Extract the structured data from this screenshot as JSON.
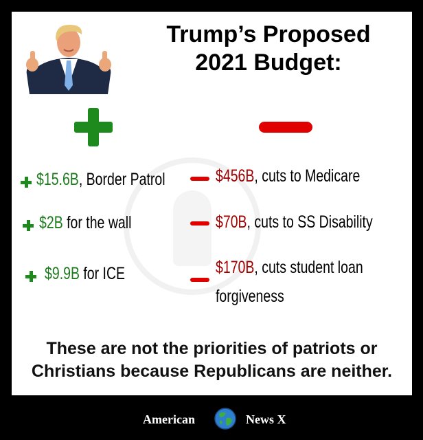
{
  "title": {
    "line1": "Trump’s Proposed",
    "line2": "2021 Budget:"
  },
  "columns": {
    "plus_color": "#1e8a1e",
    "minus_color": "#e00000"
  },
  "increases": [
    {
      "amount": "$15.6B",
      "desc": ", Border Patrol"
    },
    {
      "amount": "$2B",
      "desc": " for the wall"
    },
    {
      "amount": "$9.9B",
      "desc": " for ICE"
    }
  ],
  "cuts": [
    {
      "amount": "$456B",
      "desc": ", cuts to Medicare",
      "desc2": ""
    },
    {
      "amount": "$70B",
      "desc": ", cuts to SS Disability",
      "desc2": ""
    },
    {
      "amount": "$170B",
      "desc": ", cuts student loan",
      "desc2": "forgiveness"
    }
  ],
  "statement": {
    "line1": "These are not the priorities of patriots or",
    "line2": "Christians because Republicans are neither."
  },
  "brand": {
    "left": "American",
    "right": "News X",
    "icon": "globe-icon"
  },
  "photo": {
    "icon": "person-thumbs-up-photo"
  }
}
